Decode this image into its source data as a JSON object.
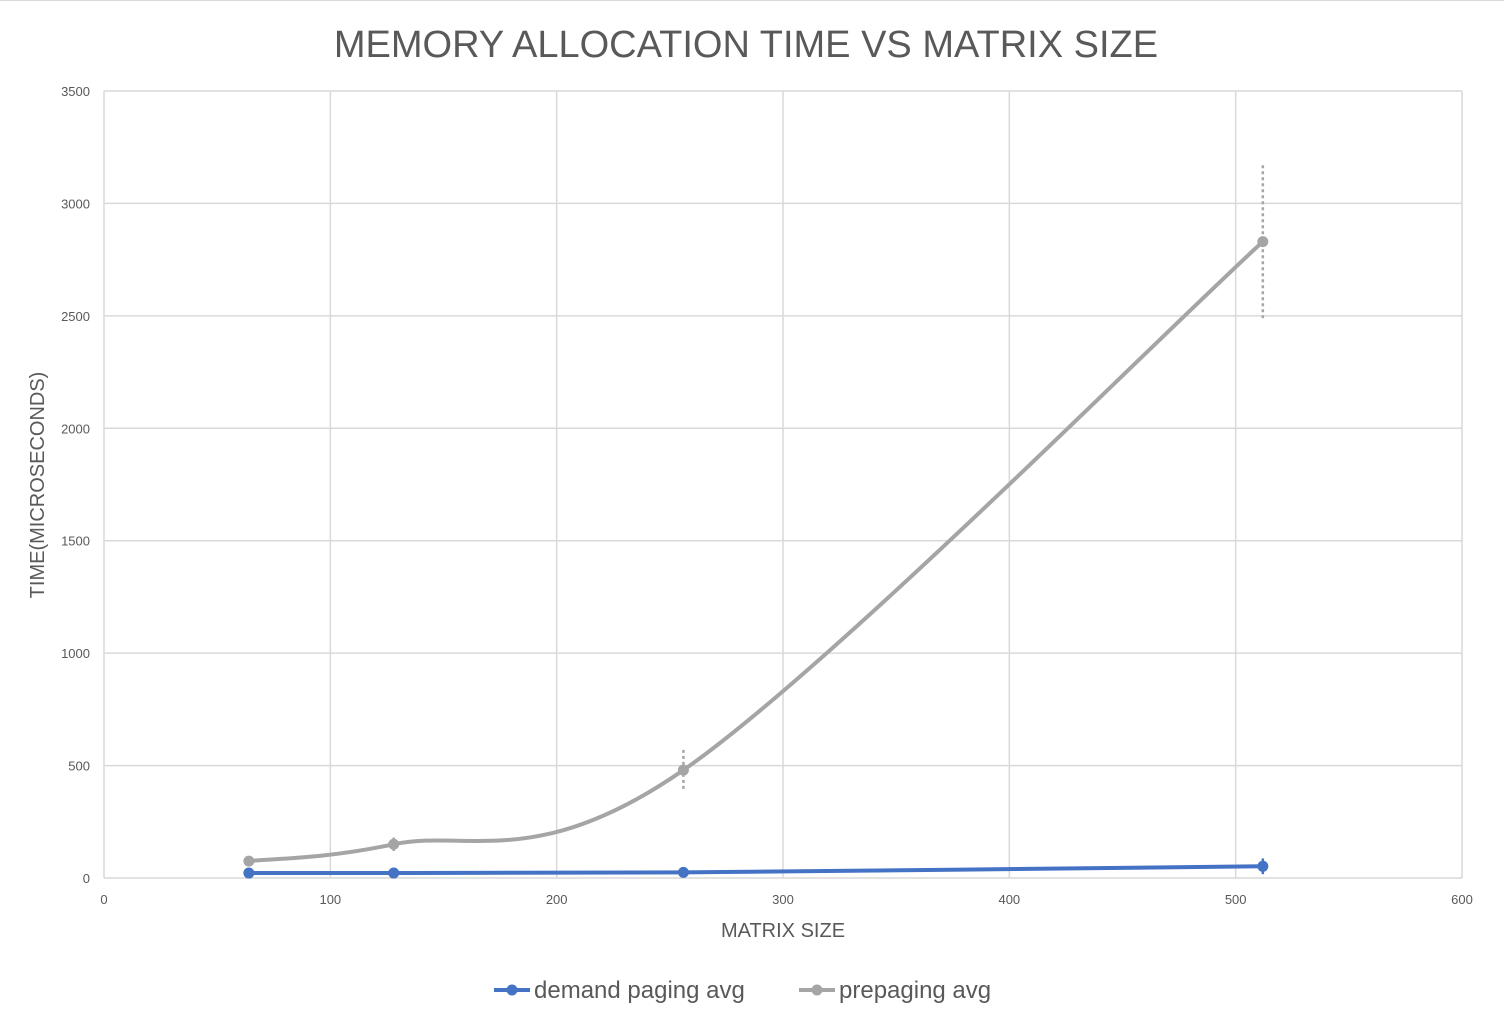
{
  "chart_data": {
    "type": "line",
    "title": "MEMORY ALLOCATION TIME VS MATRIX SIZE",
    "xlabel": "MATRIX SIZE",
    "ylabel": "TIME(MICROSECONDS)",
    "xlim": [
      0,
      600
    ],
    "ylim": [
      0,
      3500
    ],
    "xticks": [
      0,
      100,
      200,
      300,
      400,
      500,
      600
    ],
    "yticks": [
      0,
      500,
      1000,
      1500,
      2000,
      2500,
      3000,
      3500
    ],
    "grid": true,
    "smoothed": true,
    "legend_position": "bottom",
    "series": [
      {
        "name": "demand paging avg",
        "color": "#4472c4",
        "x": [
          64,
          128,
          256,
          512
        ],
        "values": [
          22,
          22,
          25,
          52
        ],
        "error": [
          12,
          18,
          14,
          35
        ]
      },
      {
        "name": "prepaging avg",
        "color": "#a5a5a5",
        "x": [
          64,
          128,
          256,
          512
        ],
        "values": [
          75,
          150,
          480,
          2830
        ],
        "error": [
          15,
          30,
          90,
          340
        ]
      }
    ]
  }
}
